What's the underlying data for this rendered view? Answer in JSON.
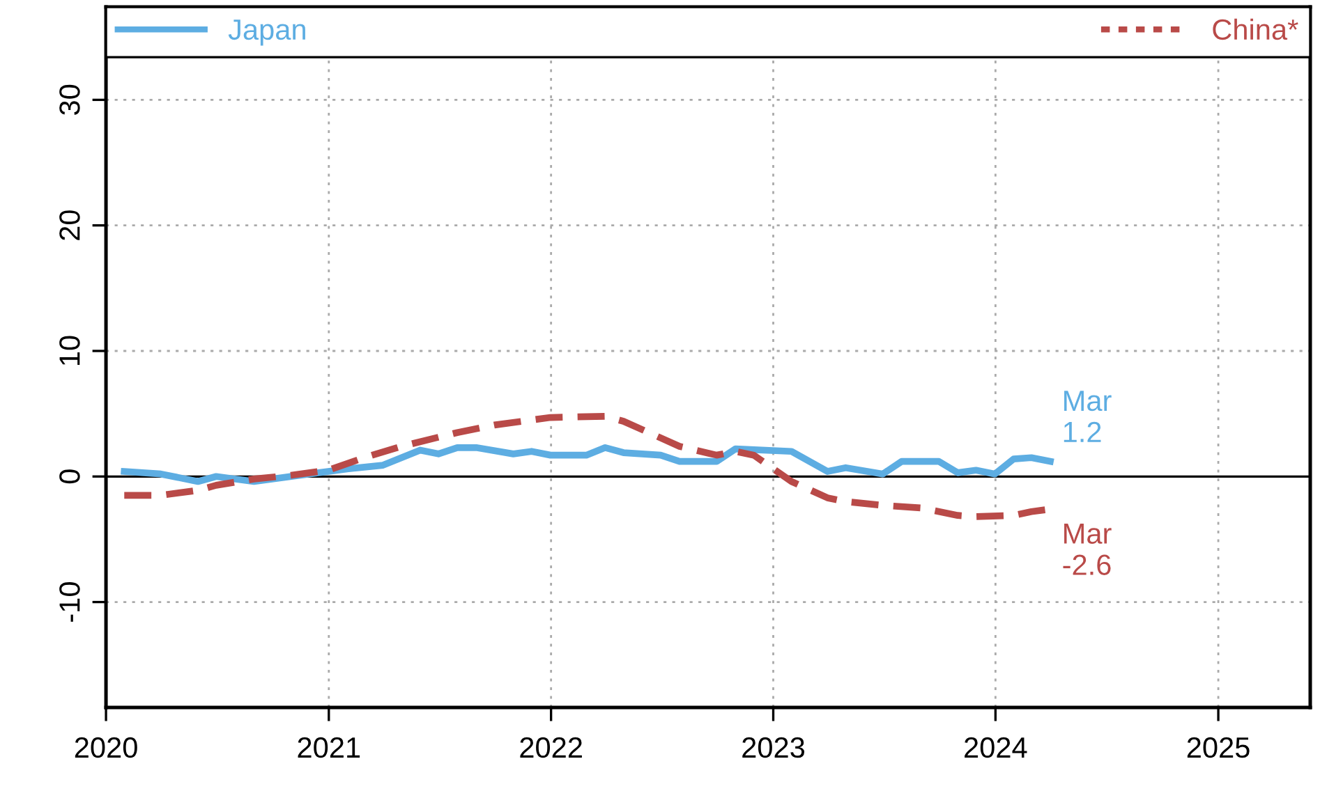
{
  "chart_data": {
    "type": "line",
    "series": [
      {
        "name": "Japan",
        "color": "#5dade2",
        "line_style": "solid",
        "x": [
          "2020-01-31",
          "2020-03-31",
          "2020-05-31",
          "2020-06-30",
          "2020-08-31",
          "2020-11-30",
          "2021-01-31",
          "2021-03-31",
          "2021-05-31",
          "2021-06-30",
          "2021-07-31",
          "2021-08-31",
          "2021-10-31",
          "2021-11-30",
          "2021-12-31",
          "2022-02-28",
          "2022-03-31",
          "2022-04-30",
          "2022-06-30",
          "2022-07-31",
          "2022-09-30",
          "2022-10-31",
          "2023-01-31",
          "2023-03-31",
          "2023-04-30",
          "2023-06-30",
          "2023-07-31",
          "2023-09-30",
          "2023-10-31",
          "2023-11-30",
          "2023-12-31",
          "2024-01-31",
          "2024-02-29",
          "2024-03-31"
        ],
        "values": [
          0.4,
          0.2,
          -0.4,
          0.0,
          -0.4,
          0.2,
          0.6,
          0.9,
          2.1,
          1.8,
          2.3,
          2.3,
          1.8,
          2.0,
          1.7,
          1.7,
          2.3,
          1.9,
          1.7,
          1.2,
          1.2,
          2.2,
          2.0,
          0.4,
          0.7,
          0.2,
          1.2,
          1.2,
          0.3,
          0.5,
          0.2,
          1.4,
          1.5,
          1.2
        ]
      },
      {
        "name": "China*",
        "color": "#b94a48",
        "line_style": "dashed",
        "x": [
          "2020-01-31",
          "2020-03-31",
          "2020-05-31",
          "2020-06-30",
          "2020-08-31",
          "2020-10-31",
          "2020-12-31",
          "2021-02-28",
          "2021-04-30",
          "2021-07-31",
          "2021-09-30",
          "2021-12-31",
          "2022-03-31",
          "2022-04-30",
          "2022-07-31",
          "2022-09-30",
          "2022-10-31",
          "2022-11-30",
          "2023-01-31",
          "2023-03-31",
          "2023-04-30",
          "2023-06-30",
          "2023-08-31",
          "2023-10-31",
          "2023-11-30",
          "2024-01-31",
          "2024-02-29",
          "2024-03-31"
        ],
        "values": [
          -1.5,
          -1.5,
          -1.1,
          -0.7,
          -0.2,
          0.1,
          0.5,
          1.5,
          2.4,
          3.5,
          4.1,
          4.7,
          4.8,
          4.4,
          2.4,
          1.7,
          2.0,
          1.7,
          -0.4,
          -1.7,
          -2.0,
          -2.3,
          -2.5,
          -3.1,
          -3.2,
          -3.1,
          -2.8,
          -2.6
        ]
      }
    ],
    "xlim": [
      "2020-01-01",
      "2025-06-01"
    ],
    "xticks": [
      {
        "value": "2020-01-01",
        "label": "2020"
      },
      {
        "value": "2021-01-01",
        "label": "2021"
      },
      {
        "value": "2022-01-01",
        "label": "2022"
      },
      {
        "value": "2023-01-01",
        "label": "2023"
      },
      {
        "value": "2024-01-01",
        "label": "2024"
      },
      {
        "value": "2025-01-01",
        "label": "2025"
      }
    ],
    "ylim": [
      -18.4,
      37.4
    ],
    "yticks": [
      {
        "value": -10,
        "label": "-10"
      },
      0,
      10,
      20,
      30
    ],
    "ref_lines": [
      {
        "axis": "y",
        "value": 0,
        "color": "#000000"
      }
    ],
    "annotations": [
      {
        "text": "Mar\n1.2",
        "x": "2024-03-31",
        "y": 1.2
      },
      {
        "text": "Mar\n-2.6",
        "x": "2024-03-31",
        "y": -2.6
      }
    ],
    "grid": true,
    "legend": "top"
  }
}
